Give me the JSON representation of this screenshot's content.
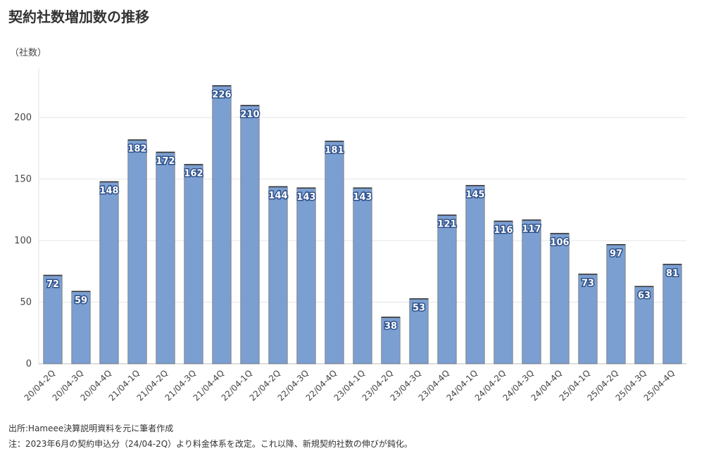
{
  "chart_data": {
    "type": "bar",
    "title": "契約社数増加数の推移",
    "ylabel": "（社数）",
    "xlabel": "",
    "ylim": [
      0,
      240
    ],
    "yticks": [
      0,
      50,
      100,
      150,
      200
    ],
    "grid": true,
    "categories": [
      "20/04-2Q",
      "20/04-3Q",
      "20/04-4Q",
      "21/04-1Q",
      "21/04-2Q",
      "21/04-3Q",
      "21/04-4Q",
      "22/04-1Q",
      "22/04-2Q",
      "22/04-3Q",
      "22/04-4Q",
      "23/04-1Q",
      "23/04-2Q",
      "23/04-3Q",
      "23/04-4Q",
      "24/04-1Q",
      "24/04-2Q",
      "24/04-3Q",
      "24/04-4Q",
      "25/04-1Q",
      "25/04-2Q",
      "25/04-3Q",
      "25/04-4Q"
    ],
    "values": [
      72,
      59,
      148,
      182,
      172,
      162,
      226,
      210,
      144,
      143,
      181,
      143,
      38,
      53,
      121,
      145,
      116,
      117,
      106,
      73,
      97,
      63,
      81
    ],
    "bar_color": "#7c9fd1",
    "bar_edge_color": "#333333"
  },
  "footnotes": {
    "source": "出所:Hameee決算説明資料を元に筆者作成",
    "note": "注：2023年6月の契約申込分（24/04-2Q）より料金体系を改定。これ以降、新規契約社数の伸びが鈍化。"
  }
}
